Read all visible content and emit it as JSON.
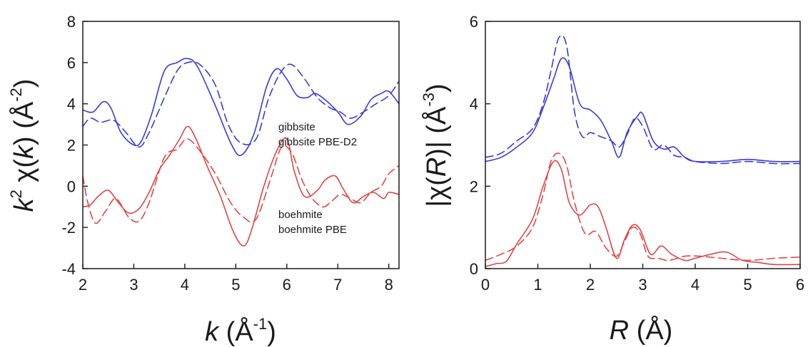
{
  "chart_data": [
    {
      "type": "line",
      "xlim": [
        2,
        8.2
      ],
      "ylim": [
        -4,
        8
      ],
      "xticks": [
        2,
        3,
        4,
        5,
        6,
        7,
        8
      ],
      "yticks": [
        -4,
        -2,
        0,
        2,
        4,
        6,
        8
      ],
      "xlabel": {
        "main": "k",
        "unit_open": " (Å",
        "sup": "-1",
        "unit_close": ")"
      },
      "ylabel": {
        "k": "k",
        "k_sup": "2",
        "chi": " χ(",
        "chi_arg": "k",
        "paren": ") (Å",
        "sup": "-2",
        "close": ")"
      },
      "grid": false,
      "legend": [
        {
          "label": "gibbsite",
          "color": "#3b3bd6"
        },
        {
          "label": "gibbsite PBE-D2",
          "color": "#3b3bd6"
        },
        {
          "label": "boehmite",
          "color": "#e04646"
        },
        {
          "label": "boehmite PBE",
          "color": "#e04646"
        }
      ],
      "series": [
        {
          "name": "gibbsite",
          "color": "#3b3bd6",
          "dash": false,
          "x": [
            2.0,
            2.2,
            2.4,
            2.55,
            2.75,
            3.0,
            3.15,
            3.35,
            3.6,
            3.85,
            4.05,
            4.25,
            4.6,
            4.9,
            5.1,
            5.35,
            5.6,
            5.8,
            6.0,
            6.2,
            6.4,
            6.55,
            6.75,
            7.0,
            7.2,
            7.45,
            7.65,
            7.85,
            8.0,
            8.2
          ],
          "y": [
            3.7,
            3.6,
            4.1,
            3.8,
            2.6,
            2.0,
            2.2,
            3.5,
            5.6,
            6.0,
            6.2,
            5.8,
            3.9,
            2.1,
            1.5,
            2.5,
            4.8,
            5.7,
            5.2,
            4.4,
            4.3,
            4.5,
            4.2,
            3.6,
            3.0,
            3.4,
            4.2,
            4.5,
            4.6,
            4.0
          ]
        },
        {
          "name": "gibbsite PBE-D2",
          "color": "#3b3bd6",
          "dash": true,
          "x": [
            2.0,
            2.15,
            2.35,
            2.6,
            2.85,
            3.1,
            3.3,
            3.6,
            3.85,
            4.05,
            4.3,
            4.6,
            4.85,
            5.1,
            5.4,
            5.65,
            5.9,
            6.1,
            6.35,
            6.6,
            6.85,
            7.05,
            7.25,
            7.5,
            7.75,
            8.0,
            8.2
          ],
          "y": [
            2.9,
            3.3,
            3.1,
            3.2,
            2.6,
            1.9,
            2.6,
            4.3,
            5.6,
            6.0,
            5.9,
            4.9,
            3.0,
            2.1,
            2.3,
            4.3,
            5.6,
            5.9,
            5.2,
            4.3,
            3.8,
            3.6,
            3.3,
            3.6,
            4.0,
            4.4,
            5.1
          ]
        },
        {
          "name": "boehmite",
          "color": "#e04646",
          "dash": false,
          "x": [
            2.0,
            2.15,
            2.3,
            2.5,
            2.7,
            2.9,
            3.1,
            3.3,
            3.5,
            3.7,
            3.9,
            4.05,
            4.2,
            4.45,
            4.7,
            4.95,
            5.15,
            5.3,
            5.55,
            5.8,
            6.0,
            6.15,
            6.35,
            6.6,
            6.75,
            6.95,
            7.1,
            7.3,
            7.5,
            7.7,
            7.9,
            8.0,
            8.2
          ],
          "y": [
            -1.0,
            -0.9,
            -0.5,
            -0.2,
            -0.8,
            -1.3,
            -1.1,
            -0.3,
            0.8,
            1.5,
            2.3,
            2.9,
            2.4,
            0.9,
            -0.5,
            -2.2,
            -2.9,
            -2.2,
            0.0,
            1.7,
            2.3,
            0.7,
            -0.5,
            -0.2,
            0.3,
            0.5,
            -0.1,
            -0.8,
            -0.5,
            -0.3,
            -0.6,
            -0.3,
            -0.4
          ]
        },
        {
          "name": "boehmite PBE",
          "color": "#e04646",
          "dash": true,
          "x": [
            2.0,
            2.1,
            2.25,
            2.45,
            2.65,
            2.9,
            3.1,
            3.3,
            3.6,
            3.85,
            4.05,
            4.3,
            4.6,
            4.9,
            5.15,
            5.4,
            5.7,
            5.9,
            6.1,
            6.3,
            6.5,
            6.7,
            6.85,
            7.05,
            7.25,
            7.45,
            7.65,
            7.85,
            8.0,
            8.2
          ],
          "y": [
            0.5,
            -0.8,
            -1.8,
            -1.2,
            -0.6,
            -1.5,
            -1.7,
            -0.8,
            1.4,
            1.8,
            2.3,
            1.7,
            0.6,
            -0.8,
            -1.5,
            -1.6,
            0.5,
            1.9,
            1.6,
            0.3,
            -0.6,
            -1.0,
            -0.8,
            -0.4,
            -0.6,
            -0.8,
            -0.3,
            0.0,
            0.6,
            1.0
          ]
        }
      ]
    },
    {
      "type": "line",
      "xlim": [
        0,
        6
      ],
      "ylim": [
        0,
        6
      ],
      "xticks": [
        0,
        1,
        2,
        3,
        4,
        5,
        6
      ],
      "yticks": [
        0,
        2,
        4,
        6
      ],
      "xlabel": {
        "main": "R",
        "unit_open": " (Å)",
        "sup": "",
        "unit_close": ""
      },
      "ylabel": {
        "main": "|χ(",
        "arg": "R",
        "mid": ")| (Å",
        "sup": "-3",
        "close": ")"
      },
      "grid": false,
      "series": [
        {
          "name": "gibbsite",
          "color": "#3b3bd6",
          "dash": false,
          "x": [
            0.0,
            0.3,
            0.6,
            0.9,
            1.1,
            1.3,
            1.45,
            1.6,
            1.8,
            2.0,
            2.2,
            2.4,
            2.55,
            2.7,
            2.9,
            3.0,
            3.2,
            3.4,
            3.6,
            3.8,
            4.0,
            4.5,
            5.0,
            5.5,
            6.0
          ],
          "y": [
            2.6,
            2.7,
            2.95,
            3.3,
            3.9,
            4.6,
            5.1,
            4.9,
            4.0,
            3.85,
            3.6,
            3.1,
            2.7,
            3.3,
            3.7,
            3.75,
            3.1,
            2.9,
            2.95,
            2.7,
            2.6,
            2.6,
            2.65,
            2.6,
            2.6
          ]
        },
        {
          "name": "gibbsite PBE-D2",
          "color": "#3b3bd6",
          "dash": true,
          "x": [
            0.0,
            0.3,
            0.6,
            0.9,
            1.1,
            1.25,
            1.4,
            1.55,
            1.7,
            1.85,
            2.0,
            2.2,
            2.4,
            2.55,
            2.7,
            2.85,
            3.0,
            3.2,
            3.4,
            3.6,
            3.8,
            4.0,
            4.5,
            5.0,
            5.5,
            6.0
          ],
          "y": [
            2.7,
            2.8,
            3.1,
            3.4,
            4.0,
            4.8,
            5.6,
            5.4,
            3.8,
            3.2,
            3.3,
            3.2,
            3.1,
            2.95,
            3.25,
            3.65,
            3.45,
            2.9,
            3.0,
            2.75,
            2.7,
            2.6,
            2.55,
            2.6,
            2.55,
            2.55
          ]
        },
        {
          "name": "boehmite",
          "color": "#e04646",
          "dash": false,
          "x": [
            0.0,
            0.2,
            0.4,
            0.6,
            0.9,
            1.1,
            1.3,
            1.45,
            1.6,
            1.8,
            2.0,
            2.15,
            2.3,
            2.5,
            2.65,
            2.8,
            2.95,
            3.15,
            3.35,
            3.55,
            3.8,
            4.0,
            4.3,
            4.6,
            4.9,
            5.2,
            5.5,
            6.0
          ],
          "y": [
            0.05,
            0.12,
            0.18,
            0.6,
            1.2,
            2.0,
            2.6,
            2.4,
            1.6,
            1.3,
            1.55,
            1.5,
            1.0,
            0.25,
            0.7,
            1.05,
            0.95,
            0.35,
            0.55,
            0.35,
            0.2,
            0.25,
            0.35,
            0.4,
            0.2,
            0.15,
            0.1,
            0.1
          ]
        },
        {
          "name": "boehmite PBE",
          "color": "#e04646",
          "dash": true,
          "x": [
            0.0,
            0.3,
            0.6,
            0.9,
            1.1,
            1.25,
            1.4,
            1.55,
            1.7,
            1.9,
            2.1,
            2.3,
            2.5,
            2.65,
            2.8,
            2.95,
            3.1,
            3.3,
            3.5,
            3.8,
            4.1,
            4.5,
            5.0,
            5.5,
            6.0
          ],
          "y": [
            0.2,
            0.35,
            0.55,
            1.0,
            1.8,
            2.6,
            2.8,
            2.5,
            1.6,
            0.85,
            0.9,
            0.5,
            0.3,
            0.65,
            1.0,
            0.85,
            0.3,
            0.25,
            0.2,
            0.3,
            0.3,
            0.25,
            0.2,
            0.25,
            0.28
          ]
        }
      ]
    }
  ]
}
